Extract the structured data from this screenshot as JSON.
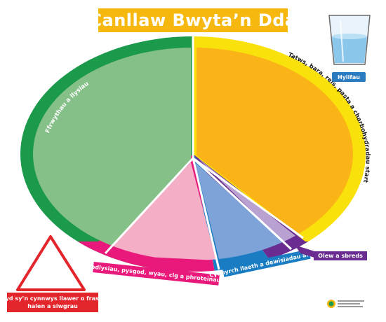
{
  "title": "Canllaw Bwyta’n Dda",
  "segments": {
    "fruit_veg": "Ffrwythau a llysiau",
    "starch": "Tatws, bara, reis, pasta a charbohydradau startsyd eraill",
    "protein": "Ffa, codlysiau, pysgod, wyau, cig a phroteinau eraill",
    "dairy": "Cynnyrch llaeth a dewisiadau amgen",
    "oil": "Olew a sbreds"
  },
  "fluids_label": "Hylifau",
  "treats_line1": "Bwyd sy’n cynnwys llawer o fraster,",
  "treats_line2": "halen a siwgrau",
  "colors": {
    "title_bg": "#f6b80f",
    "fruit_veg_rim": "#1b9a4b",
    "fruit_veg_fill": "#86c089",
    "starch_rim": "#f9e10c",
    "starch_fill": "#fbb417",
    "protein_rim": "#e8197b",
    "protein_fill": "#f4aec6",
    "dairy_rim": "#1a7dc3",
    "dairy_fill": "#7da3d8",
    "oil_rim": "#6a2c90",
    "oil_fill": "#b9a2d2",
    "treats": "#e3262c",
    "fluids": "#2b7bc0"
  }
}
